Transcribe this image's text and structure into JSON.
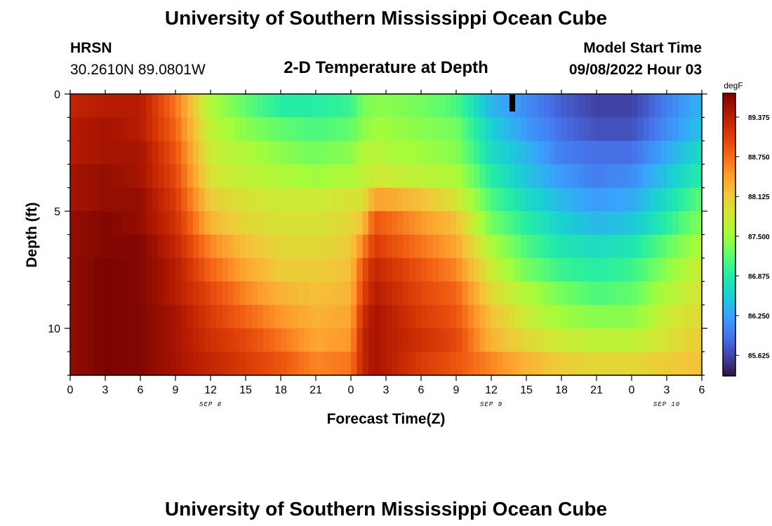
{
  "header": {
    "title": "University of Southern Mississippi Ocean Cube",
    "station": "HRSN",
    "coords": "30.2610N  89.0801W",
    "subtitle": "2-D Temperature at Depth",
    "model_start_label": "Model Start Time",
    "model_start_value": "09/08/2022 Hour 03"
  },
  "footer": {
    "title": "University of Southern Mississippi Ocean Cube"
  },
  "chart_data": {
    "type": "heatmap",
    "title": "2-D Temperature at Depth",
    "xlabel": "Forecast Time(Z)",
    "ylabel": "Depth (ft)",
    "x_unit": "hours from Sep 8 00Z",
    "x_range": [
      0,
      54
    ],
    "x_ticks": [
      0,
      3,
      6,
      9,
      12,
      15,
      18,
      21,
      24,
      27,
      30,
      33,
      36,
      39,
      42,
      45,
      48,
      51,
      54
    ],
    "x_tick_labels": [
      "0",
      "3",
      "6",
      "9",
      "12",
      "15",
      "18",
      "21",
      "0",
      "3",
      "6",
      "9",
      "12",
      "15",
      "18",
      "21",
      "0",
      "3",
      "6"
    ],
    "date_labels": [
      {
        "hour": 12,
        "text": "SEP 8"
      },
      {
        "hour": 36,
        "text": "SEP 9"
      },
      {
        "hour": 51,
        "text": "SEP 10"
      }
    ],
    "y_range": [
      0,
      12
    ],
    "y_reversed": true,
    "y_ticks": [
      0,
      5,
      10
    ],
    "y_tick_labels": [
      "0",
      "5",
      "10"
    ],
    "depth_rows": [
      0.5,
      1.5,
      2.5,
      3.5,
      4.5,
      5.5,
      6.5,
      7.5,
      8.5,
      9.5,
      10.5,
      11.5
    ],
    "colorbar": {
      "unit": "degF",
      "min": 85.3,
      "max": 89.75,
      "ticks": [
        85.625,
        86.25,
        86.875,
        87.5,
        88.125,
        88.75,
        89.375
      ],
      "tick_labels": [
        "85.625",
        "86.250",
        "86.875",
        "87.500",
        "88.125",
        "88.750",
        "89.375"
      ],
      "colors": [
        "#30123b",
        "#4145ab",
        "#4675ed",
        "#39a2fc",
        "#1bcfd4",
        "#24eca6",
        "#61fc6c",
        "#a4fc3b",
        "#d1e834",
        "#f3c63a",
        "#fe9b2d",
        "#f36315",
        "#d93806",
        "#b11901",
        "#7a0402"
      ]
    },
    "keyframes_hours": [
      0,
      3,
      6,
      9,
      12,
      15,
      18,
      21,
      24,
      25,
      26,
      27,
      30,
      33,
      36,
      39,
      42,
      45,
      48,
      51,
      54
    ],
    "temperature_degF": [
      [
        89.3,
        89.4,
        89.4,
        88.7,
        87.6,
        87.2,
        86.9,
        86.9,
        87.0,
        87.3,
        87.4,
        87.4,
        87.3,
        87.1,
        86.4,
        86.1,
        85.8,
        85.6,
        85.6,
        86.0,
        86.4
      ],
      [
        89.4,
        89.5,
        89.4,
        88.8,
        87.7,
        87.4,
        87.2,
        87.1,
        87.2,
        87.4,
        87.5,
        87.5,
        87.4,
        87.3,
        86.6,
        86.2,
        85.9,
        85.7,
        85.7,
        86.1,
        86.5
      ],
      [
        89.4,
        89.5,
        89.5,
        88.9,
        87.8,
        87.6,
        87.4,
        87.3,
        87.4,
        87.6,
        87.7,
        87.6,
        87.5,
        87.4,
        86.7,
        86.4,
        86.0,
        85.9,
        85.9,
        86.3,
        86.7
      ],
      [
        89.5,
        89.6,
        89.5,
        89.0,
        87.9,
        87.7,
        87.6,
        87.5,
        87.6,
        87.7,
        87.8,
        87.8,
        87.7,
        87.6,
        86.9,
        86.5,
        86.2,
        86.0,
        86.1,
        86.5,
        86.9
      ],
      [
        89.5,
        89.6,
        89.6,
        89.1,
        88.1,
        87.9,
        87.8,
        87.8,
        87.9,
        87.9,
        88.4,
        88.4,
        88.2,
        87.9,
        87.1,
        86.7,
        86.4,
        86.2,
        86.3,
        86.7,
        87.2
      ],
      [
        89.6,
        89.7,
        89.6,
        89.2,
        88.3,
        88.0,
        87.9,
        87.9,
        88.0,
        88.2,
        88.9,
        88.8,
        88.5,
        88.2,
        87.3,
        86.9,
        86.6,
        86.4,
        86.5,
        86.9,
        87.4
      ],
      [
        89.6,
        89.7,
        89.7,
        89.3,
        88.6,
        88.2,
        88.0,
        88.0,
        88.1,
        88.6,
        89.1,
        89.0,
        88.7,
        88.4,
        87.6,
        87.1,
        86.8,
        86.7,
        86.8,
        87.2,
        87.6
      ],
      [
        89.6,
        89.75,
        89.7,
        89.4,
        88.8,
        88.4,
        88.1,
        88.1,
        88.2,
        88.9,
        89.3,
        89.2,
        88.9,
        88.6,
        87.8,
        87.3,
        87.0,
        86.9,
        87.0,
        87.4,
        87.8
      ],
      [
        89.6,
        89.75,
        89.7,
        89.4,
        89.0,
        88.6,
        88.3,
        88.2,
        88.3,
        89.0,
        89.4,
        89.3,
        89.0,
        88.8,
        88.0,
        87.6,
        87.3,
        87.1,
        87.2,
        87.6,
        87.9
      ],
      [
        89.6,
        89.75,
        89.7,
        89.5,
        89.1,
        88.8,
        88.5,
        88.3,
        88.4,
        89.2,
        89.5,
        89.4,
        89.1,
        88.9,
        88.2,
        87.8,
        87.5,
        87.4,
        87.4,
        87.8,
        88.0
      ],
      [
        89.6,
        89.75,
        89.7,
        89.5,
        89.2,
        89.0,
        88.7,
        88.4,
        88.5,
        89.3,
        89.5,
        89.4,
        89.2,
        89.0,
        88.3,
        88.0,
        87.8,
        87.7,
        87.7,
        87.9,
        88.1
      ],
      [
        89.6,
        89.75,
        89.7,
        89.5,
        89.3,
        89.1,
        88.9,
        88.6,
        88.7,
        89.3,
        89.5,
        89.4,
        89.1,
        88.9,
        88.6,
        88.3,
        88.1,
        88.0,
        88.0,
        88.1,
        88.2
      ]
    ],
    "marker": {
      "hour": 37.8,
      "depth": 0.3,
      "color": "#000000"
    }
  }
}
